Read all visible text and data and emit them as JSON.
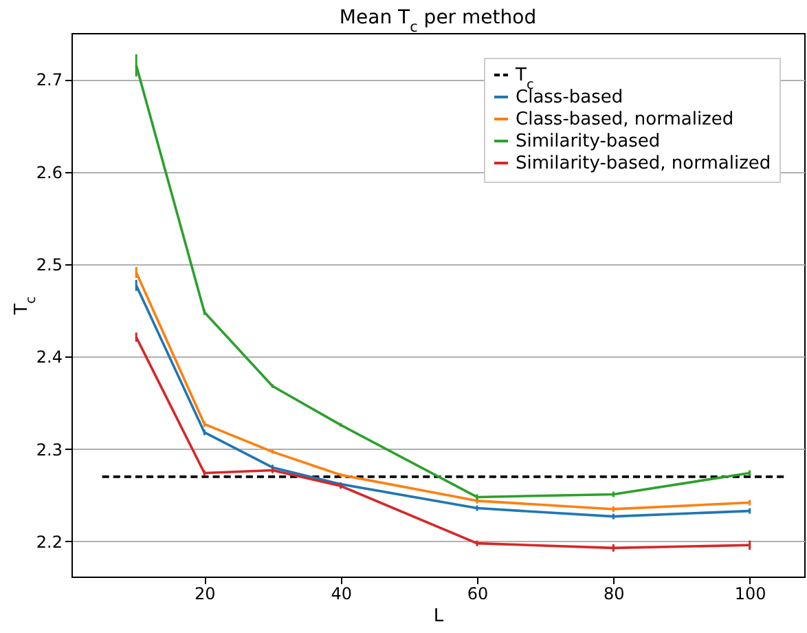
{
  "chart_data": {
    "type": "line",
    "title": "Mean T$_{c}$ per method",
    "xlabel": "L",
    "ylabel": "T$_{c}$",
    "x": [
      10,
      20,
      30,
      40,
      60,
      80,
      100
    ],
    "series": [
      {
        "name": "T$_{c}$",
        "color": "#000000",
        "x": [
          5,
          105
        ],
        "values": [
          2.27,
          2.27
        ],
        "line_style": "dashed"
      },
      {
        "name": "Class-based",
        "color": "#1f77b4",
        "values": [
          2.477,
          2.318,
          2.28,
          2.262,
          2.236,
          2.227,
          2.233
        ],
        "errors": [
          0.006,
          0.003,
          0.003,
          0.002,
          0.003,
          0.003,
          0.003
        ]
      },
      {
        "name": "Class-based, normalized",
        "color": "#ff7f0e",
        "values": [
          2.491,
          2.327,
          2.297,
          2.272,
          2.244,
          2.235,
          2.242
        ],
        "errors": [
          0.006,
          0.003,
          0.002,
          0.002,
          0.003,
          0.003,
          0.003
        ]
      },
      {
        "name": "Similarity-based",
        "color": "#2ca02c",
        "values": [
          2.715,
          2.448,
          2.368,
          2.326,
          2.248,
          2.251,
          2.274
        ],
        "errors": [
          0.012,
          0.003,
          0.002,
          0.002,
          0.003,
          0.003,
          0.003
        ]
      },
      {
        "name": "Similarity-based, normalized",
        "color": "#d62728",
        "values": [
          2.421,
          2.274,
          2.277,
          2.26,
          2.198,
          2.193,
          2.196
        ],
        "errors": [
          0.005,
          0.003,
          0.003,
          0.003,
          0.003,
          0.004,
          0.005
        ]
      }
    ],
    "xlim": [
      0.5,
      108
    ],
    "xticks": [
      20,
      40,
      60,
      80,
      100
    ],
    "ylim": [
      2.162,
      2.75
    ],
    "yticks": [
      2.2,
      2.3,
      2.4,
      2.5,
      2.6,
      2.7
    ],
    "grid": "y",
    "legend": "top right",
    "marker": "none"
  }
}
